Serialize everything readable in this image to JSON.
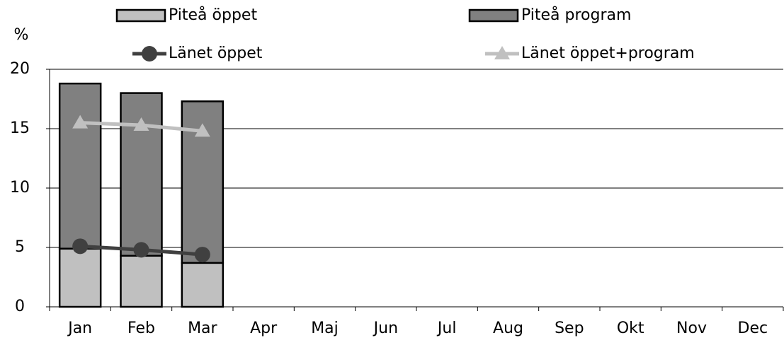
{
  "chart_data": {
    "type": "bar",
    "y_label": "%",
    "categories": [
      "Jan",
      "Feb",
      "Mar",
      "Apr",
      "Maj",
      "Jun",
      "Jul",
      "Aug",
      "Sep",
      "Okt",
      "Nov",
      "Dec"
    ],
    "series": [
      {
        "name": "Piteå öppet",
        "type": "bar",
        "color": "#c0c0c0",
        "values": [
          4.9,
          4.3,
          3.7,
          null,
          null,
          null,
          null,
          null,
          null,
          null,
          null,
          null
        ]
      },
      {
        "name": "Piteå program",
        "type": "bar",
        "color": "#808080",
        "values": [
          13.9,
          13.7,
          13.6,
          null,
          null,
          null,
          null,
          null,
          null,
          null,
          null,
          null
        ]
      },
      {
        "name": "Länet öppet",
        "type": "line",
        "marker": "circle",
        "color": "#404040",
        "values": [
          5.1,
          4.8,
          4.4,
          null,
          null,
          null,
          null,
          null,
          null,
          null,
          null,
          null
        ]
      },
      {
        "name": "Länet öppet+program",
        "type": "line",
        "marker": "triangle",
        "color": "#c0c0c0",
        "values": [
          15.5,
          15.3,
          14.8,
          null,
          null,
          null,
          null,
          null,
          null,
          null,
          null,
          null
        ]
      }
    ],
    "stacked": true,
    "ylim": [
      0,
      20
    ],
    "yticks": [
      0,
      5,
      10,
      15,
      20
    ],
    "grid": true
  }
}
